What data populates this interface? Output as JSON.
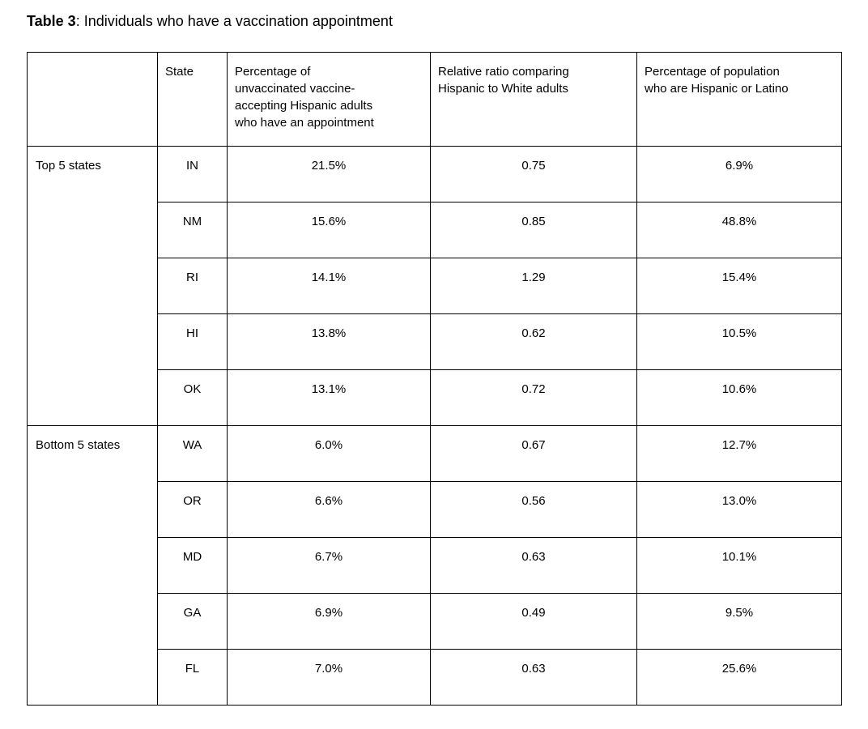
{
  "title": {
    "label": "Table 3",
    "rest": ": Individuals who have a vaccination appointment"
  },
  "table": {
    "columns": [
      "",
      "State",
      "Percentage of\nunvaccinated vaccine-\naccepting Hispanic adults\nwho have an appointment",
      "Relative ratio comparing\nHispanic to White adults",
      "Percentage of population\nwho are Hispanic or Latino"
    ],
    "sections": [
      {
        "label": "Top 5 states",
        "rows": [
          {
            "state": "IN",
            "pct_appointment": "21.5%",
            "relative_ratio": "0.75",
            "pct_hispanic_population": "6.9%"
          },
          {
            "state": "NM",
            "pct_appointment": "15.6%",
            "relative_ratio": "0.85",
            "pct_hispanic_population": "48.8%"
          },
          {
            "state": "RI",
            "pct_appointment": "14.1%",
            "relative_ratio": "1.29",
            "pct_hispanic_population": "15.4%"
          },
          {
            "state": "HI",
            "pct_appointment": "13.8%",
            "relative_ratio": "0.62",
            "pct_hispanic_population": "10.5%"
          },
          {
            "state": "OK",
            "pct_appointment": "13.1%",
            "relative_ratio": "0.72",
            "pct_hispanic_population": "10.6%"
          }
        ]
      },
      {
        "label": "Bottom 5 states",
        "rows": [
          {
            "state": "WA",
            "pct_appointment": "6.0%",
            "relative_ratio": "0.67",
            "pct_hispanic_population": "12.7%"
          },
          {
            "state": "OR",
            "pct_appointment": "6.6%",
            "relative_ratio": "0.56",
            "pct_hispanic_population": "13.0%"
          },
          {
            "state": "MD",
            "pct_appointment": "6.7%",
            "relative_ratio": "0.63",
            "pct_hispanic_population": "10.1%"
          },
          {
            "state": "GA",
            "pct_appointment": "6.9%",
            "relative_ratio": "0.49",
            "pct_hispanic_population": "9.5%"
          },
          {
            "state": "FL",
            "pct_appointment": "7.0%",
            "relative_ratio": "0.63",
            "pct_hispanic_population": "25.6%"
          }
        ]
      }
    ]
  },
  "colors": {
    "text": "#000000",
    "border": "#000000",
    "background": "#ffffff"
  }
}
